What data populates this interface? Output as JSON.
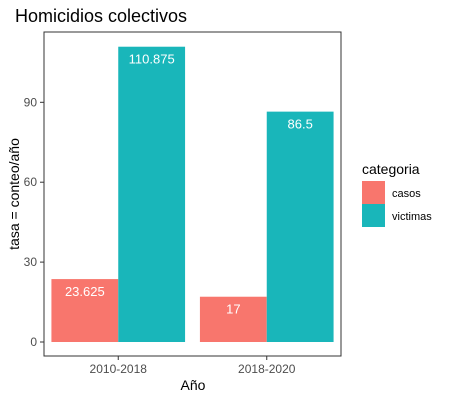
{
  "chart_data": {
    "type": "bar",
    "title": "Homicidios colectivos",
    "xlabel": "Año",
    "ylabel": "tasa = conteo/año",
    "categories": [
      "2010-2018",
      "2018-2020"
    ],
    "series": [
      {
        "name": "casos",
        "values": [
          23.625,
          17
        ],
        "labels": [
          "23.625",
          "17"
        ],
        "color": "#F8766D"
      },
      {
        "name": "victimas",
        "values": [
          110.875,
          86.5
        ],
        "labels": [
          "110.875",
          "86.5"
        ],
        "color": "#19B6BA"
      }
    ],
    "ylim": [
      0,
      116.4
    ],
    "yticks": [
      0,
      30,
      60,
      90
    ],
    "grid": false,
    "legend": {
      "title": "categoria",
      "position": "right"
    }
  }
}
